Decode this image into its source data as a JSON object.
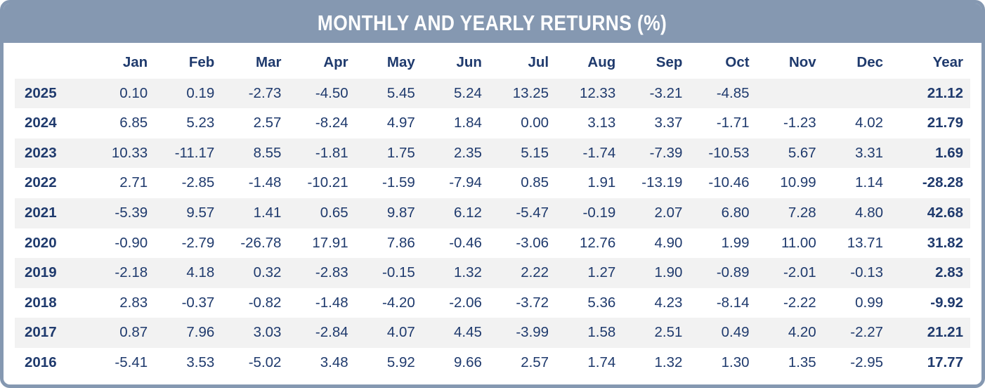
{
  "title": "MONTHLY AND YEARLY RETURNS (%)",
  "colors": {
    "header_background": "#8598b1",
    "card_border": "#8598b1",
    "title_text": "#ffffff",
    "table_text": "#1f3a6d",
    "row_stripe": "#f2f2f2",
    "row_plain": "#ffffff"
  },
  "chart_data": {
    "type": "table",
    "title": "MONTHLY AND YEARLY RETURNS (%)",
    "unit": "%",
    "columns": [
      "Jan",
      "Feb",
      "Mar",
      "Apr",
      "May",
      "Jun",
      "Jul",
      "Aug",
      "Sep",
      "Oct",
      "Nov",
      "Dec",
      "Year"
    ],
    "rows": [
      {
        "year": "2025",
        "monthly": [
          0.1,
          0.19,
          -2.73,
          -4.5,
          5.45,
          5.24,
          13.25,
          12.33,
          -3.21,
          -4.85,
          null,
          null
        ],
        "year_total": 21.12
      },
      {
        "year": "2024",
        "monthly": [
          6.85,
          5.23,
          2.57,
          -8.24,
          4.97,
          1.84,
          0.0,
          3.13,
          3.37,
          -1.71,
          -1.23,
          4.02
        ],
        "year_total": 21.79
      },
      {
        "year": "2023",
        "monthly": [
          10.33,
          -11.17,
          8.55,
          -1.81,
          1.75,
          2.35,
          5.15,
          -1.74,
          -7.39,
          -10.53,
          5.67,
          3.31
        ],
        "year_total": 1.69
      },
      {
        "year": "2022",
        "monthly": [
          2.71,
          -2.85,
          -1.48,
          -10.21,
          -1.59,
          -7.94,
          0.85,
          1.91,
          -13.19,
          -10.46,
          10.99,
          1.14
        ],
        "year_total": -28.28
      },
      {
        "year": "2021",
        "monthly": [
          -5.39,
          9.57,
          1.41,
          0.65,
          9.87,
          6.12,
          -5.47,
          -0.19,
          2.07,
          6.8,
          7.28,
          4.8
        ],
        "year_total": 42.68
      },
      {
        "year": "2020",
        "monthly": [
          -0.9,
          -2.79,
          -26.78,
          17.91,
          7.86,
          -0.46,
          -3.06,
          12.76,
          4.9,
          1.99,
          11.0,
          13.71
        ],
        "year_total": 31.82
      },
      {
        "year": "2019",
        "monthly": [
          -2.18,
          4.18,
          0.32,
          -2.83,
          -0.15,
          1.32,
          2.22,
          1.27,
          1.9,
          -0.89,
          -2.01,
          -0.13
        ],
        "year_total": 2.83
      },
      {
        "year": "2018",
        "monthly": [
          2.83,
          -0.37,
          -0.82,
          -1.48,
          -4.2,
          -2.06,
          -3.72,
          5.36,
          4.23,
          -8.14,
          -2.22,
          0.99
        ],
        "year_total": -9.92
      },
      {
        "year": "2017",
        "monthly": [
          0.87,
          7.96,
          3.03,
          -2.84,
          4.07,
          4.45,
          -3.99,
          1.58,
          2.51,
          0.49,
          4.2,
          -2.27
        ],
        "year_total": 21.21
      },
      {
        "year": "2016",
        "monthly": [
          -5.41,
          3.53,
          -5.02,
          3.48,
          5.92,
          9.66,
          2.57,
          1.74,
          1.32,
          1.3,
          1.35,
          -2.95
        ],
        "year_total": 17.77
      }
    ]
  }
}
